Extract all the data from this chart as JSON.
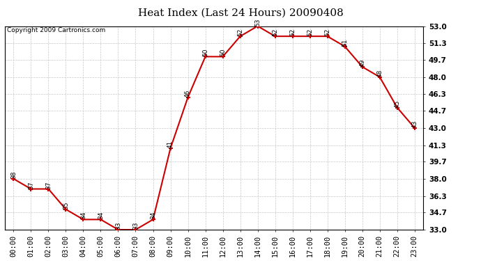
{
  "title": "Heat Index (Last 24 Hours) 20090408",
  "copyright": "Copyright 2009 Cartronics.com",
  "hours": [
    "00:00",
    "01:00",
    "02:00",
    "03:00",
    "04:00",
    "05:00",
    "06:00",
    "07:00",
    "08:00",
    "09:00",
    "10:00",
    "11:00",
    "12:00",
    "13:00",
    "14:00",
    "15:00",
    "16:00",
    "17:00",
    "18:00",
    "19:00",
    "20:00",
    "21:00",
    "22:00",
    "23:00"
  ],
  "values": [
    38,
    37,
    37,
    35,
    34,
    34,
    33,
    33,
    34,
    41,
    46,
    50,
    50,
    52,
    53,
    52,
    52,
    52,
    52,
    51,
    49,
    48,
    45,
    43
  ],
  "yticks": [
    33.0,
    34.7,
    36.3,
    38.0,
    39.7,
    41.3,
    43.0,
    44.7,
    46.3,
    48.0,
    49.7,
    51.3,
    53.0
  ],
  "ymin": 33.0,
  "ymax": 53.0,
  "line_color": "#cc0000",
  "marker_color": "#cc0000",
  "background_color": "#ffffff",
  "plot_bg_color": "#ffffff",
  "grid_color": "#c8c8c8",
  "title_fontsize": 11,
  "copyright_fontsize": 6.5,
  "label_fontsize": 6.5,
  "tick_fontsize": 7.5
}
